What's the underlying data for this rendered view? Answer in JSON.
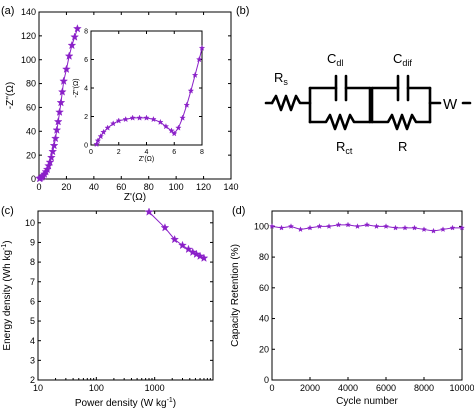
{
  "colors": {
    "series": "#8a20c8",
    "axis": "#000000"
  },
  "panels": {
    "a": {
      "label": "(a)"
    },
    "b": {
      "label": "(b)"
    },
    "c": {
      "label": "(c)"
    },
    "d": {
      "label": "(d)"
    }
  },
  "circuit": {
    "rs": "R",
    "rs_sub": "s",
    "cdl": "C",
    "cdl_sub": "dl",
    "cdif": "C",
    "cdif_sub": "dif",
    "rct": "R",
    "rct_sub": "ct",
    "r": "R",
    "w": "W"
  },
  "chart_data": [
    {
      "id": "a-main",
      "type": "line",
      "marker": "star",
      "xlabel": "Z'(Ω)",
      "ylabel": "-Z''(Ω)",
      "xlim": [
        0,
        140
      ],
      "ylim": [
        0,
        140
      ],
      "xticks": [
        0,
        20,
        40,
        60,
        80,
        100,
        120,
        140
      ],
      "yticks": [
        0,
        20,
        40,
        60,
        80,
        100,
        120,
        140
      ],
      "x": [
        0.5,
        1,
        2,
        3,
        4,
        5,
        6,
        7,
        8,
        9,
        10,
        11,
        12,
        13,
        14,
        15,
        16,
        17,
        18,
        20,
        22,
        24,
        26,
        28
      ],
      "y": [
        0.3,
        0.8,
        1.5,
        2.5,
        4,
        6,
        8,
        11,
        14,
        18,
        23,
        28,
        34,
        41,
        48,
        56,
        64,
        73,
        82,
        92,
        103,
        112,
        119,
        126
      ]
    },
    {
      "id": "a-inset",
      "type": "line",
      "marker": "star",
      "xlabel": "Z'(Ω)",
      "ylabel": "-Z''(Ω)",
      "xlim": [
        0,
        8
      ],
      "ylim": [
        0,
        8
      ],
      "xticks": [
        0,
        2,
        4,
        6,
        8
      ],
      "yticks": [
        0,
        2,
        4,
        6,
        8
      ],
      "x": [
        0.4,
        0.5,
        0.7,
        0.9,
        1.2,
        1.6,
        2.0,
        2.5,
        3.0,
        3.5,
        4.0,
        4.5,
        5.0,
        5.4,
        5.8,
        6.0,
        6.3,
        6.6,
        6.9,
        7.2,
        7.5,
        7.8,
        8.0
      ],
      "y": [
        0.05,
        0.3,
        0.6,
        0.9,
        1.2,
        1.5,
        1.7,
        1.8,
        1.9,
        1.9,
        1.9,
        1.8,
        1.6,
        1.3,
        1.0,
        0.8,
        1.2,
        1.9,
        2.8,
        3.8,
        4.9,
        6.0,
        6.8
      ]
    },
    {
      "id": "c",
      "type": "line",
      "marker": "star",
      "xscale": "log",
      "xlabel": "Power density (W kg",
      "xlabel_sup": "-1",
      "xlabel_end": ")",
      "ylabel": "Energy density (Wh kg",
      "ylabel_sup": "-1",
      "ylabel_end": ")",
      "xlim": [
        10,
        10000
      ],
      "ylim": [
        2,
        10.6
      ],
      "xticks": [
        10,
        100,
        1000
      ],
      "xticklabels": [
        "10",
        "100",
        "1000"
      ],
      "yticks": [
        2,
        3,
        4,
        5,
        6,
        7,
        8,
        9,
        10
      ],
      "x": [
        800,
        1500,
        2200,
        3000,
        3800,
        4500,
        5200,
        6000,
        7000
      ],
      "y": [
        10.55,
        9.75,
        9.15,
        8.85,
        8.65,
        8.5,
        8.4,
        8.3,
        8.2
      ]
    },
    {
      "id": "d",
      "type": "line",
      "marker": "star",
      "xlabel": "Cycle number",
      "ylabel": "Capacity Retention (%)",
      "xlim": [
        0,
        10000
      ],
      "ylim": [
        0,
        110
      ],
      "xticks": [
        0,
        2000,
        4000,
        6000,
        8000,
        10000
      ],
      "xticklabels": [
        "0",
        "2000",
        "4000",
        "6000",
        "8000",
        "10000"
      ],
      "yticks": [
        0,
        20,
        40,
        60,
        80,
        100
      ],
      "x": [
        0,
        500,
        1000,
        1500,
        2000,
        2500,
        3000,
        3500,
        4000,
        4500,
        5000,
        5500,
        6000,
        6500,
        7000,
        7500,
        8000,
        8500,
        9000,
        9500,
        10000
      ],
      "y": [
        100,
        99,
        100,
        98,
        99,
        100,
        100,
        101,
        101,
        100,
        101,
        100,
        100,
        99,
        99,
        99,
        98,
        97,
        98,
        99,
        99
      ]
    }
  ]
}
